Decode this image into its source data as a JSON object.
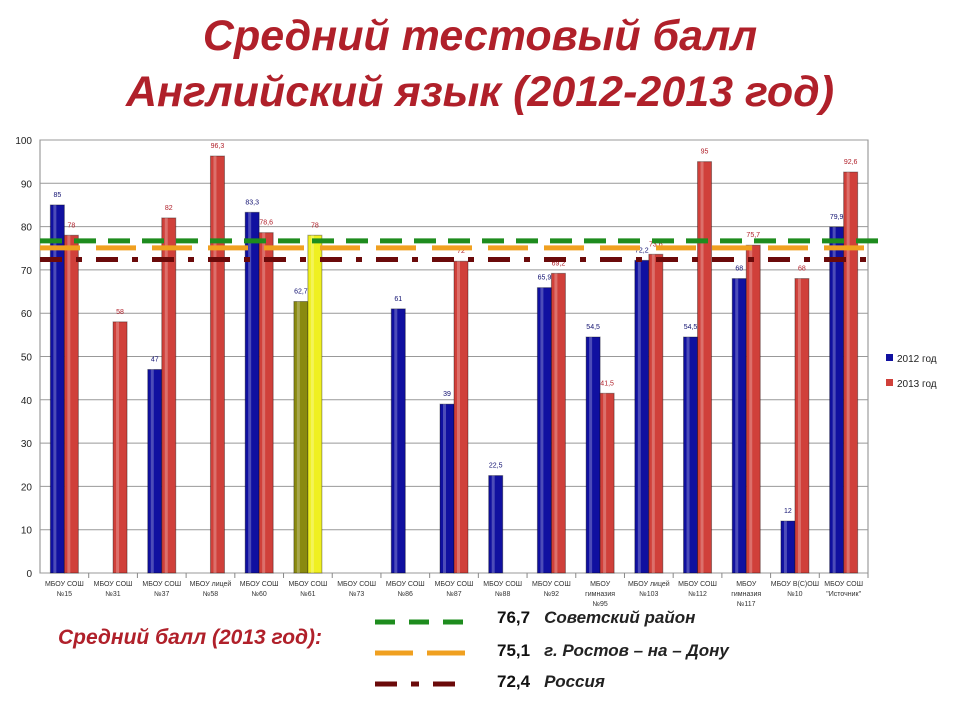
{
  "title_line1": "Средний тестовый балл",
  "title_line2": "Английский язык (2012-2013 год)",
  "avg_label": "Средний балл (2013 год):",
  "reference_lines": [
    {
      "value": 76.7,
      "value_text": "76,7",
      "name": "Советский район",
      "color": "#1e8c1e",
      "style": "dash"
    },
    {
      "value": 75.1,
      "value_text": "75,1",
      "name": "г. Ростов – на – Дону",
      "color": "#f0a020",
      "style": "longdash"
    },
    {
      "value": 72.4,
      "value_text": "72,4",
      "name": "Россия",
      "color": "#6b0a0a",
      "style": "dashdot"
    }
  ],
  "chart_data": {
    "type": "bar",
    "title": "Средний тестовый балл Английский язык (2012-2013 год)",
    "ylim": [
      0,
      100
    ],
    "yticks": [
      0,
      10,
      20,
      30,
      40,
      50,
      60,
      70,
      80,
      90,
      100
    ],
    "grid": true,
    "legend_position": "right",
    "categories": [
      [
        "МБОУ СОШ",
        "№15"
      ],
      [
        "МБОУ СОШ",
        "№31"
      ],
      [
        "МБОУ СОШ",
        "№37"
      ],
      [
        "МБОУ лицей",
        "№58"
      ],
      [
        "МБОУ СОШ",
        "№60"
      ],
      [
        "МБОУ СОШ",
        "№61"
      ],
      [
        "МБОУ СОШ",
        "№73"
      ],
      [
        "МБОУ СОШ",
        "№86"
      ],
      [
        "МБОУ СОШ",
        "№87"
      ],
      [
        "МБОУ СОШ",
        "№88"
      ],
      [
        "МБОУ СОШ",
        "№92"
      ],
      [
        "МБОУ",
        "гимназия",
        "№95"
      ],
      [
        "МБОУ лицей",
        "№103"
      ],
      [
        "МБОУ СОШ",
        "№112"
      ],
      [
        "МБОУ",
        "гимназия",
        "№117"
      ],
      [
        "МБОУ В(С)ОШ",
        "№10"
      ],
      [
        "МБОУ СОШ",
        "\"Источник\""
      ]
    ],
    "series": [
      {
        "name": "2012 год",
        "color": "#1010a0",
        "values": [
          85,
          null,
          47,
          null,
          83.3,
          62.7,
          null,
          61,
          39,
          22.5,
          65.9,
          54.5,
          72.2,
          54.5,
          68,
          12,
          79.9
        ],
        "labels": [
          "85",
          "",
          "47",
          "",
          "83,3",
          "62,7",
          "",
          "61",
          "39",
          "22,5",
          "65,9",
          "54,5",
          "72,2",
          "54,5",
          "68",
          "12",
          "79,9"
        ]
      },
      {
        "name": "2013 год",
        "color": "#d0403a",
        "values": [
          78,
          58,
          82,
          96.3,
          78.6,
          78,
          null,
          null,
          72,
          null,
          69.2,
          41.5,
          73.6,
          95,
          75.7,
          68,
          92.6
        ],
        "labels": [
          "78",
          "58",
          "82",
          "96,3",
          "78,6",
          "78",
          "",
          "",
          "72",
          "",
          "69,2",
          "41,5",
          "73,6",
          "95",
          "75,7",
          "68",
          "92,6"
        ]
      }
    ],
    "highlight": {
      "category_index": 5,
      "colors": [
        "#8a8a10",
        "#f0f020"
      ]
    }
  }
}
